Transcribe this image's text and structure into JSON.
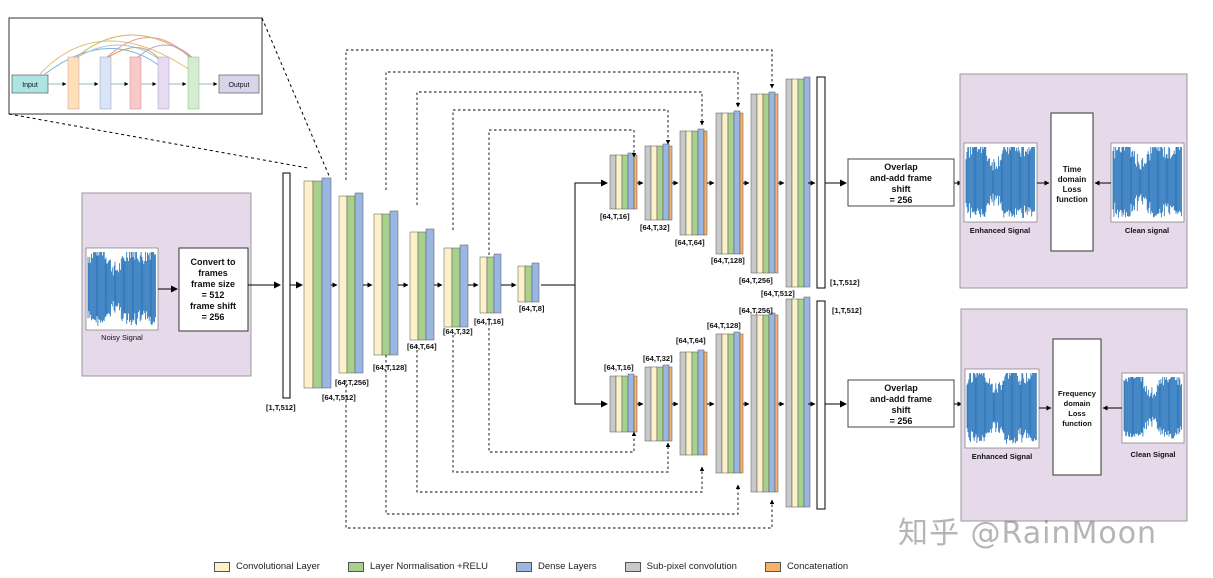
{
  "colors": {
    "conv": "#fdf1c9",
    "norm": "#a9d18e",
    "dense": "#9ab7e3",
    "subpixel": "#c9c9c9",
    "concat": "#f5b26b",
    "panel": "#e5d9ea",
    "wave": "#1f6fb8"
  },
  "inset": {
    "input": "Input",
    "output": "Output"
  },
  "left_panel": {
    "label": "Noisy Signal"
  },
  "convert_box": {
    "lines": [
      "Convert to",
      "frames",
      "frame size",
      "= 512",
      "frame shift",
      "= 256"
    ]
  },
  "encoder_labels": [
    "[1,T,512]",
    "[64,T,512]",
    "[64,T,256]",
    "[64,T,128]",
    "[64,T,64]",
    "[64,T,32]",
    "[64,T,16]",
    "[64,T,8]"
  ],
  "decoder_top_labels": [
    "[64,T,16]",
    "[64,T,32]",
    "[64,T,64]",
    "[64,T,128]",
    "[64,T,256]",
    "[64,T,512]",
    "[1,T,512]"
  ],
  "decoder_bottom_labels": [
    "[64,T,16]",
    "[64,T,32]",
    "[64,T,64]",
    "[64,T,128]",
    "[64,T,256]",
    "[1,T,512]"
  ],
  "overlap_top": {
    "lines": [
      "Overlap",
      "and-add frame",
      "shift",
      "= 256"
    ]
  },
  "overlap_bottom": {
    "lines": [
      "Overlap",
      "and-add frame",
      "shift",
      "= 256"
    ]
  },
  "right_top": {
    "enhanced": "Enhanced Signal",
    "clean": "Clean signal",
    "loss_lines": [
      "Time",
      "domain",
      "Loss",
      "function"
    ]
  },
  "right_bottom": {
    "enhanced": "Enhanced Signal",
    "clean": "Clean Signal",
    "loss_lines": [
      "Frequency",
      "domain",
      "Loss",
      "function"
    ]
  },
  "legend": [
    {
      "label": "Convolutional Layer",
      "color": "#fdf1c9"
    },
    {
      "label": "Layer Normalisation +RELU",
      "color": "#a9d18e"
    },
    {
      "label": "Dense Layers",
      "color": "#9ab7e3"
    },
    {
      "label": "Sub-pixel convolution",
      "color": "#c9c9c9"
    },
    {
      "label": "Concatenation",
      "color": "#f5b26b"
    }
  ],
  "watermark": "知乎 @RainMoon"
}
